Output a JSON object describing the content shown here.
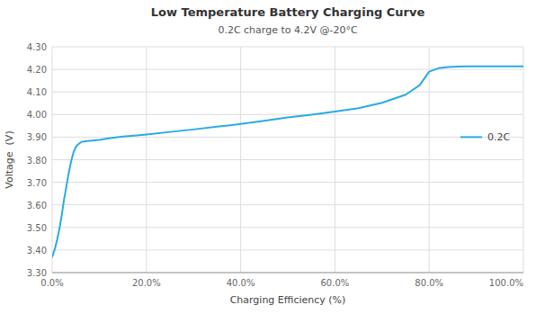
{
  "chart_data": {
    "type": "line",
    "title": "Low Temperature Battery Charging Curve",
    "subtitle": "0.2C charge to 4.2V @-20°C",
    "x_label": "Charging Efficiency (%)",
    "y_label": "Voltage  (V)",
    "x": [
      0.0,
      0.005,
      0.01,
      0.015,
      0.02,
      0.025,
      0.03,
      0.035,
      0.04,
      0.045,
      0.05,
      0.055,
      0.06,
      0.065,
      0.07,
      0.08,
      0.09,
      0.1,
      0.12,
      0.15,
      0.18,
      0.2,
      0.25,
      0.3,
      0.35,
      0.4,
      0.45,
      0.5,
      0.55,
      0.6,
      0.65,
      0.7,
      0.75,
      0.78,
      0.8,
      0.82,
      0.84,
      0.86,
      0.88,
      0.9,
      0.92,
      0.95,
      1.0
    ],
    "series": [
      {
        "name": "0.2C",
        "color": "#29ABE2",
        "values": [
          3.37,
          3.4,
          3.44,
          3.49,
          3.55,
          3.62,
          3.68,
          3.74,
          3.79,
          3.83,
          3.855,
          3.868,
          3.876,
          3.88,
          3.882,
          3.884,
          3.886,
          3.888,
          3.895,
          3.903,
          3.908,
          3.912,
          3.923,
          3.934,
          3.946,
          3.958,
          3.972,
          3.987,
          3.999,
          4.013,
          4.028,
          4.052,
          4.088,
          4.13,
          4.19,
          4.205,
          4.21,
          4.212,
          4.213,
          4.213,
          4.213,
          4.213,
          4.213
        ]
      }
    ],
    "xlim": [
      0.0,
      1.0
    ],
    "ylim": [
      3.3,
      4.3
    ],
    "xticks": [
      {
        "value": 0.0,
        "label": "0.0%"
      },
      {
        "value": 0.2,
        "label": "20.0%"
      },
      {
        "value": 0.4,
        "label": "40.0%"
      },
      {
        "value": 0.6,
        "label": "60.0%"
      },
      {
        "value": 0.8,
        "label": "80.0%"
      },
      {
        "value": 1.0,
        "label": "100.0%"
      }
    ],
    "yticks": [
      {
        "value": 3.3,
        "label": "3.30"
      },
      {
        "value": 3.4,
        "label": "3.40"
      },
      {
        "value": 3.5,
        "label": "3.50"
      },
      {
        "value": 3.6,
        "label": "3.60"
      },
      {
        "value": 3.7,
        "label": "3.70"
      },
      {
        "value": 3.8,
        "label": "3.80"
      },
      {
        "value": 3.9,
        "label": "3.90"
      },
      {
        "value": 4.0,
        "label": "4.00"
      },
      {
        "value": 4.1,
        "label": "4.10"
      },
      {
        "value": 4.2,
        "label": "4.20"
      },
      {
        "value": 4.3,
        "label": "4.30"
      }
    ],
    "grid": true,
    "legend": "right"
  }
}
